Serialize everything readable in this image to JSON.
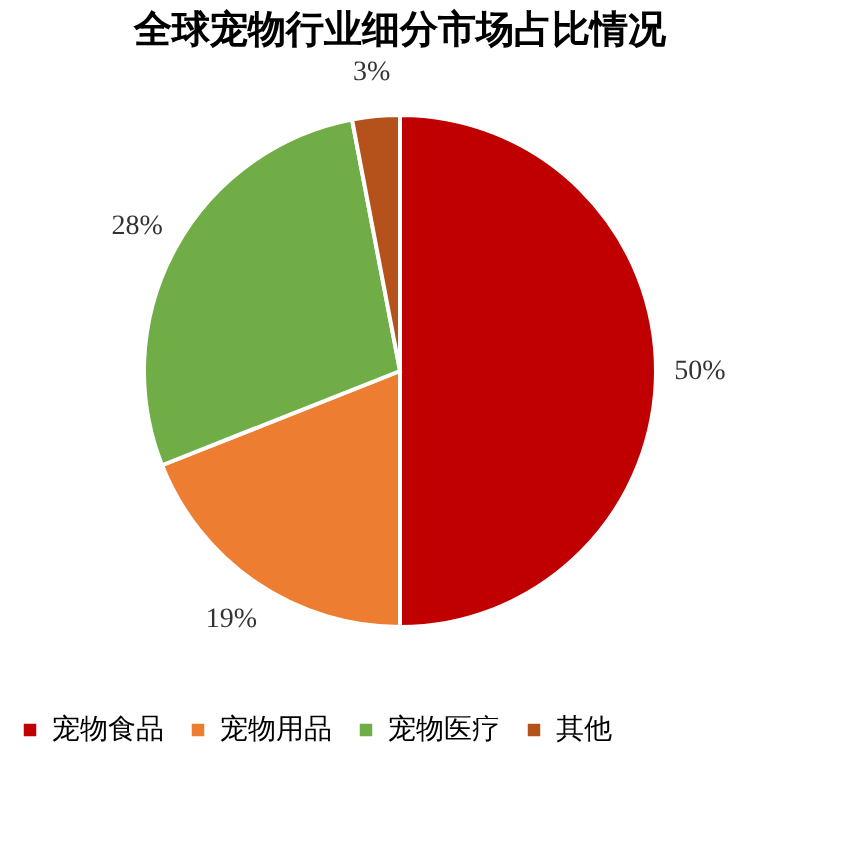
{
  "chart_data": {
    "type": "pie",
    "title": "全球宠物行业细分市场占比情况",
    "categories": [
      "宠物食品",
      "宠物用品",
      "宠物医疗",
      "其他"
    ],
    "values": [
      50,
      19,
      28,
      3
    ],
    "colors": [
      "#c00000",
      "#ed7d31",
      "#70ad47",
      "#b5521b"
    ],
    "value_labels": [
      "50%",
      "19%",
      "28%",
      "3%"
    ],
    "legend": "bottom"
  }
}
